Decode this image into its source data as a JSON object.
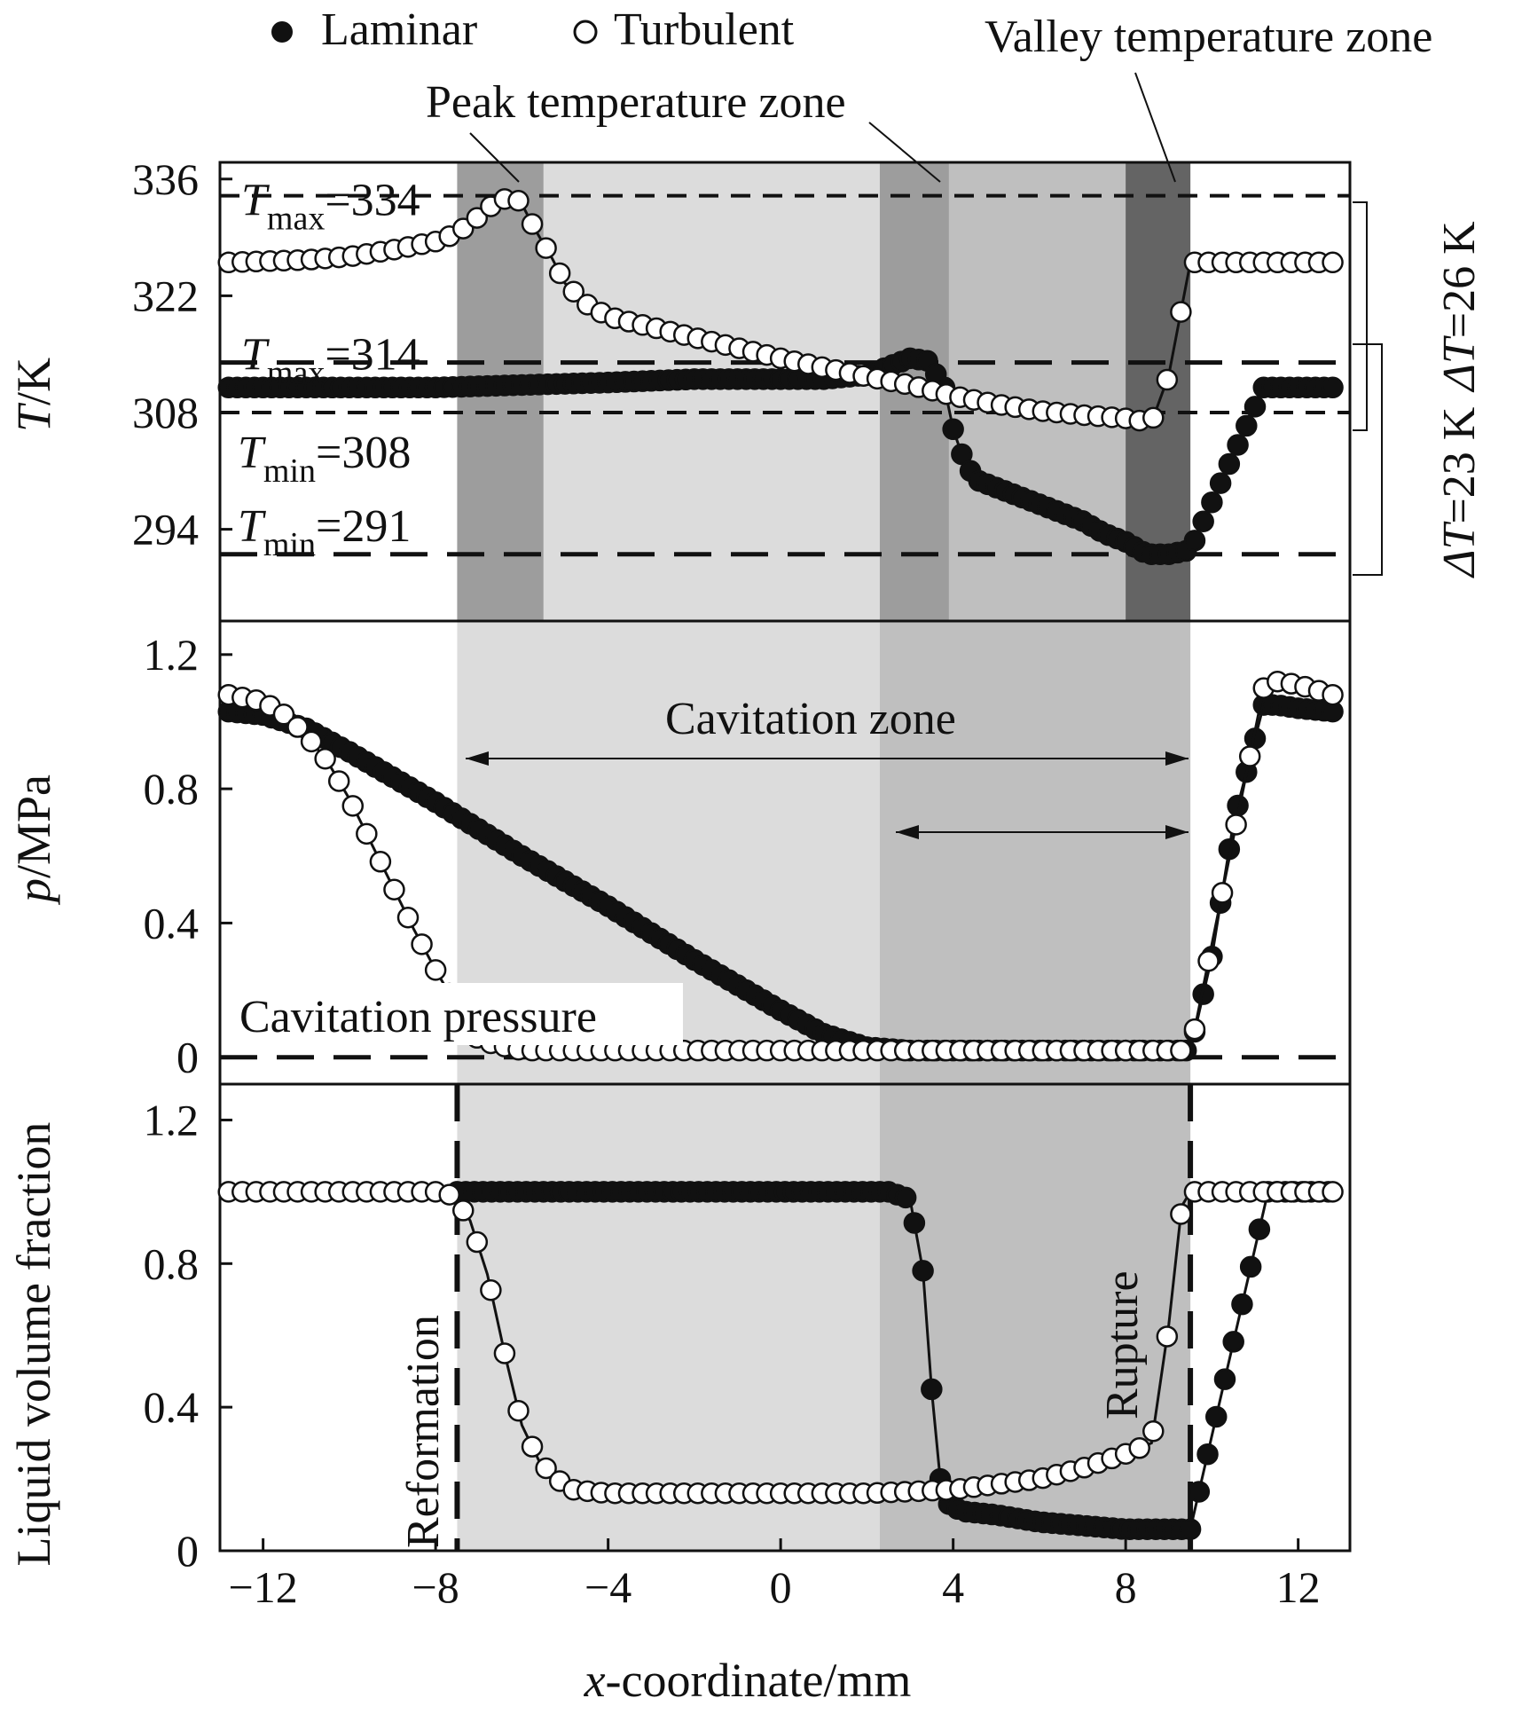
{
  "legend": {
    "laminar": "Laminar",
    "turbulent": "Turbulent"
  },
  "annotations": {
    "peak_zone": "Peak temperature zone",
    "valley_zone": "Valley temperature zone",
    "cavitation_zone": "Cavitation zone",
    "cavitation_pressure": "Cavitation pressure",
    "reformation": "Reformation",
    "rupture": "Rupture",
    "t_labels": [
      {
        "sym": "T",
        "sub": "max",
        "val": "=334",
        "y": 334
      },
      {
        "sym": "T",
        "sub": "max",
        "val": "=314",
        "y": 314
      },
      {
        "sym": "T",
        "sub": "min",
        "val": "=308",
        "y": 308
      },
      {
        "sym": "T",
        "sub": "min",
        "val": "=291",
        "y": 291
      }
    ],
    "delta_turbulent": {
      "sym": "ΔT",
      "val": "=26 K"
    },
    "delta_laminar": {
      "sym": "ΔT",
      "val": "=23 K"
    }
  },
  "colors": {
    "shade_light": "#dcdcdc",
    "shade_mid": "#bfbfbf",
    "shade_dark": "#9d9d9d",
    "shade_darker": "#646464",
    "ink": "#111111"
  },
  "chart_data": [
    {
      "type": "scatter",
      "panel": "temperature",
      "ylabel": {
        "italic": "T",
        "rest": "/K"
      },
      "xlim": [
        -13,
        13.2
      ],
      "ylim": [
        283,
        338
      ],
      "yticks": [
        294,
        308,
        322,
        336
      ],
      "ytick_labels": [
        "294",
        "308",
        "322",
        "336"
      ],
      "hlines": [
        334,
        314,
        308,
        291
      ],
      "series": [
        {
          "name": "Laminar",
          "marker": "filled",
          "x": [
            -12.8,
            -12,
            -10,
            -8,
            -6,
            -4,
            -2,
            0,
            1,
            2,
            2.5,
            3,
            3.4,
            3.8,
            4,
            4.2,
            4.5,
            5,
            6,
            7,
            7.5,
            8,
            8.5,
            9,
            9.5,
            11.2,
            12.8
          ],
          "y": [
            311,
            311,
            311,
            311,
            311.3,
            311.6,
            312,
            312,
            312,
            312.5,
            313.5,
            314.5,
            314.2,
            311,
            306,
            303,
            300,
            299,
            297,
            295,
            293.5,
            292.5,
            291,
            291,
            291.5,
            311,
            311
          ]
        },
        {
          "name": "Turbulent",
          "marker": "open",
          "x": [
            -12.8,
            -11,
            -10,
            -9,
            -8,
            -7.5,
            -7,
            -6.8,
            -6.4,
            -6.2,
            -6,
            -5.7,
            -5.3,
            -5,
            -4.5,
            -4,
            -2,
            0,
            2,
            3,
            4,
            5,
            6,
            7,
            8,
            8.6,
            9,
            9.5,
            11.5,
            12.8
          ],
          "y": [
            326,
            326.3,
            326.7,
            327.5,
            328.5,
            329.5,
            331.5,
            332.5,
            333.6,
            334,
            333,
            330,
            326.5,
            323.5,
            321,
            319.5,
            317,
            314.5,
            312.3,
            311.3,
            310,
            309,
            308.2,
            307.7,
            307.3,
            306.8,
            312.5,
            326,
            326,
            326
          ]
        }
      ]
    },
    {
      "type": "scatter",
      "panel": "pressure",
      "ylabel": {
        "italic": "p",
        "rest": "/MPa"
      },
      "xlim": [
        -13,
        13.2
      ],
      "ylim": [
        -0.08,
        1.3
      ],
      "yticks": [
        0,
        0.4,
        0.8,
        1.2
      ],
      "ytick_labels": [
        "0",
        "0.4",
        "0.8",
        "1.2"
      ],
      "hlines": [
        0
      ],
      "series": [
        {
          "name": "Laminar",
          "marker": "filled",
          "x": [
            -12.8,
            -12,
            -11,
            -10,
            -8,
            -6,
            -4,
            -2,
            0,
            1,
            2,
            3,
            4,
            6,
            8,
            9.5,
            10,
            10.5,
            11.2,
            11.5,
            12,
            12.8
          ],
          "y": [
            1.03,
            1.02,
            0.98,
            0.91,
            0.76,
            0.6,
            0.45,
            0.29,
            0.14,
            0.07,
            0.03,
            0.02,
            0.02,
            0.02,
            0.02,
            0.02,
            0.3,
            0.7,
            1.05,
            1.05,
            1.04,
            1.03
          ]
        },
        {
          "name": "Turbulent",
          "marker": "open",
          "x": [
            -12.8,
            -12,
            -11.5,
            -11,
            -10.5,
            -10,
            -9.5,
            -9,
            -8.5,
            -8,
            -7.5,
            -7,
            -6,
            -4,
            0,
            4,
            8,
            9.5,
            11.2,
            11.5,
            12,
            12.8
          ],
          "y": [
            1.08,
            1.06,
            1.02,
            0.96,
            0.88,
            0.77,
            0.64,
            0.51,
            0.38,
            0.26,
            0.15,
            0.05,
            0.02,
            0.02,
            0.02,
            0.02,
            0.02,
            0.02,
            1.1,
            1.12,
            1.11,
            1.08
          ]
        }
      ]
    },
    {
      "type": "scatter",
      "panel": "liquid_volume_fraction",
      "ylabel": {
        "italic": "",
        "rest": "Liquid volume fraction"
      },
      "xlabel": {
        "italic": "x",
        "rest": "-coordinate/mm"
      },
      "xlim": [
        -13,
        13.2
      ],
      "ylim": [
        0,
        1.3
      ],
      "xticks": [
        -12,
        -8,
        -4,
        0,
        4,
        8,
        12
      ],
      "xtick_labels": [
        "−12",
        "−8",
        "−4",
        "0",
        "4",
        "8",
        "12"
      ],
      "yticks": [
        0,
        0.4,
        0.8,
        1.2
      ],
      "ytick_labels": [
        "0",
        "0.4",
        "0.8",
        "1.2"
      ],
      "vlines": [
        -7.5,
        9.5
      ],
      "series": [
        {
          "name": "Laminar",
          "marker": "filled",
          "x": [
            -7.5,
            -4,
            0,
            2,
            2.5,
            3,
            3.3,
            3.5,
            3.7,
            3.9,
            4.2,
            5,
            6,
            7,
            8,
            9,
            9.5,
            11.3,
            12.8
          ],
          "y": [
            1,
            1,
            1,
            1,
            1,
            0.98,
            0.78,
            0.45,
            0.2,
            0.13,
            0.11,
            0.1,
            0.08,
            0.07,
            0.06,
            0.06,
            0.06,
            1,
            1
          ]
        },
        {
          "name": "Turbulent",
          "marker": "open",
          "x": [
            -12.8,
            -10,
            -8,
            -7.6,
            -7.2,
            -6.8,
            -6.4,
            -6,
            -5.6,
            -5.2,
            -4.8,
            -4,
            0,
            2,
            4,
            6,
            7,
            8,
            8.6,
            9,
            9.3,
            9.5,
            11.3,
            12.8
          ],
          "y": [
            1,
            1,
            1,
            0.99,
            0.92,
            0.77,
            0.55,
            0.35,
            0.25,
            0.2,
            0.17,
            0.16,
            0.16,
            0.16,
            0.17,
            0.2,
            0.23,
            0.27,
            0.3,
            0.63,
            0.96,
            1,
            1,
            1
          ]
        }
      ]
    }
  ]
}
